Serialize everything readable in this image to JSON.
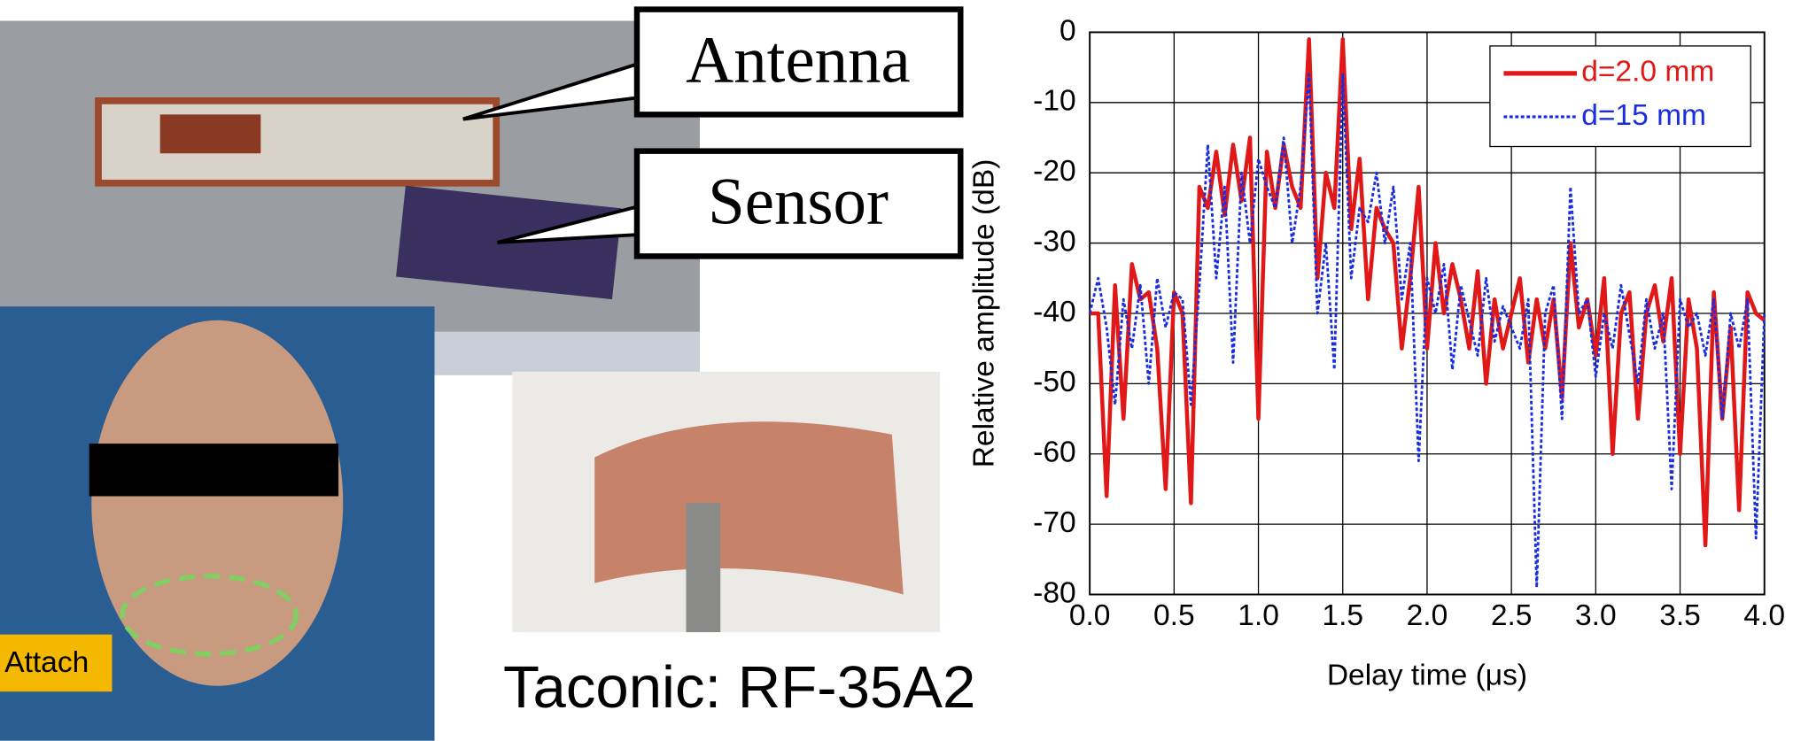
{
  "labels": {
    "antenna": "Antenna",
    "sensor": "Sensor",
    "attach": "Attach",
    "material": "Taconic: RF-35A2"
  },
  "chart_data": {
    "type": "line",
    "xlabel": "Delay time (μs)",
    "ylabel": "Relative amplitude (dB)",
    "x": [
      0,
      0.05,
      0.1,
      0.15,
      0.2,
      0.25,
      0.3,
      0.35,
      0.4,
      0.45,
      0.5,
      0.55,
      0.6,
      0.65,
      0.7,
      0.75,
      0.8,
      0.85,
      0.9,
      0.95,
      1.0,
      1.05,
      1.1,
      1.15,
      1.2,
      1.25,
      1.3,
      1.35,
      1.4,
      1.45,
      1.5,
      1.55,
      1.6,
      1.65,
      1.7,
      1.75,
      1.8,
      1.85,
      1.9,
      1.95,
      2.0,
      2.05,
      2.1,
      2.15,
      2.2,
      2.25,
      2.3,
      2.35,
      2.4,
      2.45,
      2.5,
      2.55,
      2.6,
      2.65,
      2.7,
      2.75,
      2.8,
      2.85,
      2.9,
      2.95,
      3.0,
      3.05,
      3.1,
      3.15,
      3.2,
      3.25,
      3.3,
      3.35,
      3.4,
      3.45,
      3.5,
      3.55,
      3.6,
      3.65,
      3.7,
      3.75,
      3.8,
      3.85,
      3.9,
      3.95,
      4.0
    ],
    "series": [
      {
        "name": "d=2.0 mm",
        "color": "#e01818",
        "style": "solid",
        "values": [
          -40,
          -40,
          -66,
          -36,
          -55,
          -33,
          -38,
          -37,
          -45,
          -65,
          -37,
          -40,
          -67,
          -22,
          -25,
          -17,
          -26,
          -16,
          -24,
          -15,
          -55,
          -17,
          -25,
          -16,
          -22,
          -25,
          -1,
          -35,
          -20,
          -25,
          -1,
          -28,
          -18,
          -38,
          -25,
          -28,
          -30,
          -45,
          -35,
          -22,
          -45,
          -30,
          -40,
          -33,
          -38,
          -45,
          -34,
          -50,
          -38,
          -45,
          -40,
          -35,
          -47,
          -38,
          -45,
          -38,
          -52,
          -30,
          -42,
          -38,
          -46,
          -35,
          -60,
          -40,
          -37,
          -55,
          -40,
          -36,
          -44,
          -35,
          -60,
          -38,
          -45,
          -73,
          -37,
          -55,
          -42,
          -68,
          -37,
          -40,
          -41
        ]
      },
      {
        "name": "d=15 mm",
        "color": "#1a2ee0",
        "style": "dotted",
        "values": [
          -40,
          -35,
          -42,
          -53,
          -38,
          -45,
          -36,
          -50,
          -35,
          -42,
          -37,
          -38,
          -53,
          -36,
          -16,
          -35,
          -22,
          -47,
          -20,
          -30,
          -18,
          -22,
          -25,
          -15,
          -30,
          -22,
          -6,
          -40,
          -30,
          -48,
          -6,
          -35,
          -25,
          -27,
          -20,
          -30,
          -22,
          -38,
          -30,
          -61,
          -35,
          -40,
          -33,
          -48,
          -36,
          -41,
          -46,
          -35,
          -44,
          -39,
          -42,
          -45,
          -38,
          -79,
          -40,
          -36,
          -55,
          -22,
          -40,
          -38,
          -49,
          -40,
          -45,
          -36,
          -43,
          -50,
          -38,
          -45,
          -40,
          -65,
          -38,
          -42,
          -40,
          -46,
          -38,
          -55,
          -40,
          -45,
          -38,
          -72,
          -40
        ]
      }
    ],
    "xlim": [
      0,
      4
    ],
    "ylim": [
      -80,
      0
    ],
    "xticks": [
      {
        "value": 0,
        "label": "0.0"
      },
      0.5,
      {
        "value": 1,
        "label": "1.0"
      },
      1.5,
      {
        "value": 2,
        "label": "2.0"
      },
      2.5,
      {
        "value": 3,
        "label": "3.0"
      },
      3.5,
      {
        "value": 4,
        "label": "4.0"
      }
    ],
    "yticks": [
      -80,
      -70,
      -60,
      -50,
      -40,
      -30,
      -20,
      -10,
      0
    ],
    "grid": true,
    "legend": "upper right"
  }
}
